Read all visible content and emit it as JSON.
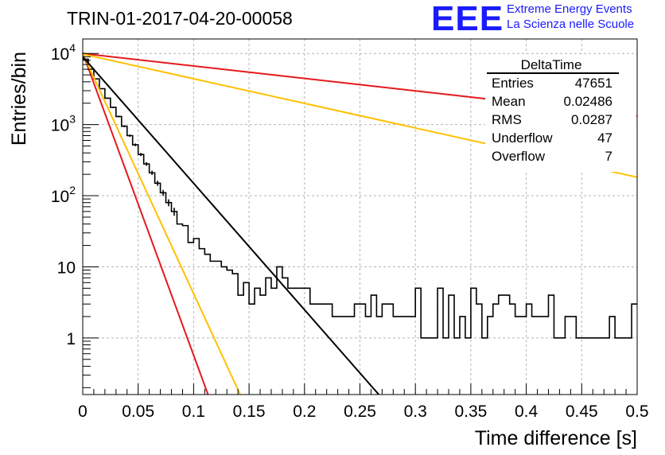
{
  "title": "TRIN-01-2017-04-20-00058",
  "logo": {
    "text": "EEE",
    "line1": "Extreme Energy Events",
    "line2": "La Scienza nelle Scuole",
    "color": "#1a1aff"
  },
  "stats": {
    "name": "DeltaTime",
    "rows": [
      {
        "label": "Entries",
        "value": "47651"
      },
      {
        "label": "Mean",
        "value": "0.02486"
      },
      {
        "label": "RMS",
        "value": "0.0287"
      },
      {
        "label": "Underflow",
        "value": "47"
      },
      {
        "label": "Overflow",
        "value": "7"
      }
    ]
  },
  "chart_data": {
    "type": "line",
    "xlabel": "Time difference [s]",
    "ylabel": "Entries/bin",
    "xlim": [
      0,
      0.5
    ],
    "ylim": [
      0.16,
      16000
    ],
    "yscale": "log",
    "grid": true,
    "x_ticks": [
      0,
      0.05,
      0.1,
      0.15,
      0.2,
      0.25,
      0.3,
      0.35,
      0.4,
      0.45,
      0.5
    ],
    "x_tick_labels": [
      "0",
      "0.05",
      "0.1",
      "0.15",
      "0.2",
      "0.25",
      "0.3",
      "0.35",
      "0.4",
      "0.45",
      "0.5"
    ],
    "y_ticks": [
      1,
      10,
      100,
      1000,
      10000
    ],
    "y_tick_labels": [
      {
        "base": "1",
        "exp": ""
      },
      {
        "base": "10",
        "exp": ""
      },
      {
        "base": "10",
        "exp": "2"
      },
      {
        "base": "10",
        "exp": "3"
      },
      {
        "base": "10",
        "exp": "4"
      }
    ],
    "histogram": {
      "bin_width": 0.005,
      "color": "#000000",
      "values": [
        8300,
        6000,
        4400,
        3200,
        2350,
        1750,
        1300,
        950,
        700,
        520,
        380,
        280,
        210,
        150,
        110,
        80,
        60,
        40,
        38,
        22,
        25,
        18,
        15,
        12,
        12,
        10,
        9,
        8,
        4,
        6,
        3,
        5,
        4,
        7,
        5,
        10,
        7,
        5,
        5,
        5,
        5,
        3,
        3,
        3,
        3,
        2,
        2,
        2,
        2,
        3,
        3,
        2,
        4,
        2,
        3,
        3,
        2,
        2,
        2,
        2,
        5,
        1,
        1,
        1,
        5,
        1,
        4,
        1,
        2,
        1,
        5,
        3,
        1,
        2,
        3,
        4,
        4,
        3,
        2,
        2,
        3,
        2,
        2,
        2,
        4,
        1,
        1,
        2,
        2,
        1,
        1,
        1,
        1,
        1,
        1,
        2,
        1,
        1,
        1,
        3
      ]
    },
    "curves": [
      {
        "color": "#e41a1c",
        "points": [
          [
            0,
            10200
          ],
          [
            0.113,
            0.16
          ]
        ]
      },
      {
        "color": "#ffc000",
        "points": [
          [
            0,
            10000
          ],
          [
            0.142,
            0.16
          ]
        ]
      },
      {
        "color": "#000000",
        "points": [
          [
            0,
            9000
          ],
          [
            0.267,
            0.16
          ]
        ]
      },
      {
        "color": "#e41a1c",
        "points": [
          [
            0,
            10000
          ],
          [
            0.5,
            1330
          ]
        ]
      },
      {
        "color": "#ffc000",
        "points": [
          [
            0,
            9800
          ],
          [
            0.5,
            182
          ]
        ]
      }
    ]
  }
}
